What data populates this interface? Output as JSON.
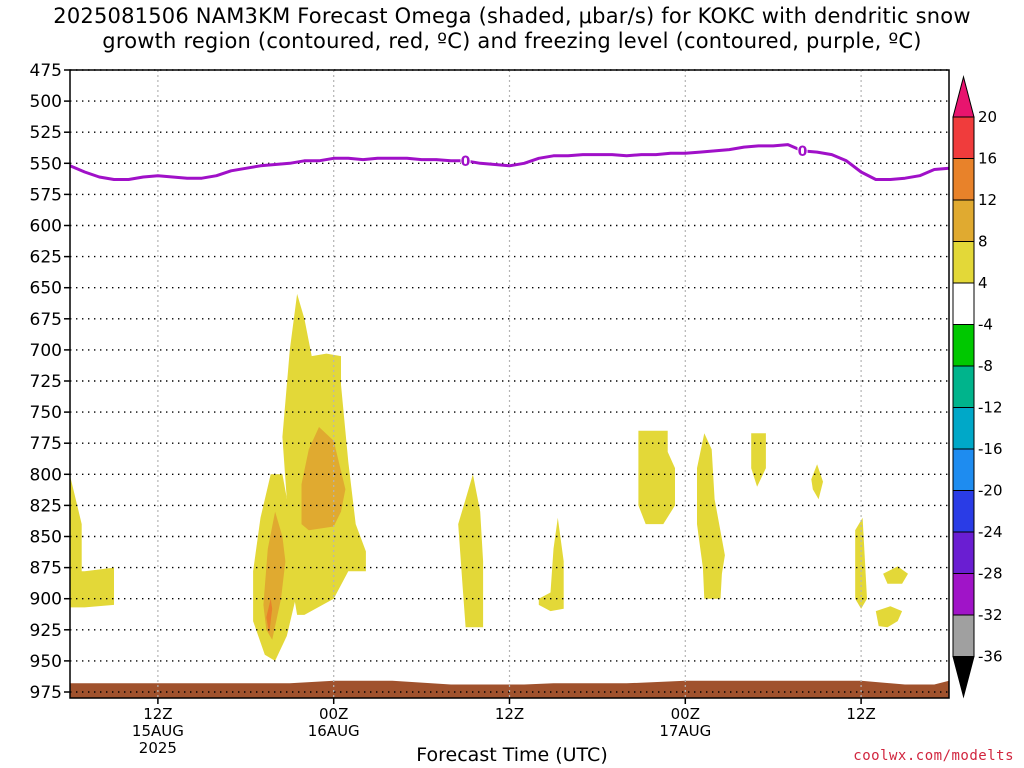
{
  "title": {
    "line1": "2025081506 NAM3KM Forecast Omega (shaded, μbar/s) for KOKC with dendritic snow",
    "line2": "growth region (contoured, red, ºC) and freezing level (contoured, purple, ºC)"
  },
  "xlabel": "Forecast Time (UTC)",
  "credit": "coolwx.com/modelts",
  "chart_data": {
    "type": "heatmap",
    "title": "2025081506 NAM3KM Forecast Omega (shaded, μbar/s) for KOKC with dendritic snow growth region (contoured, red, ºC) and freezing level (contoured, purple, ºC)",
    "xlabel": "Forecast Time (UTC)",
    "ylabel": "",
    "x_unit": "hours from 2025-08-15 06Z",
    "xlim": [
      0,
      60
    ],
    "ylim": [
      975,
      475
    ],
    "y_scale": "pressure (hPa), inverted",
    "grid": true,
    "y_ticks": [
      475,
      500,
      525,
      550,
      575,
      600,
      625,
      650,
      675,
      700,
      725,
      750,
      775,
      800,
      825,
      850,
      875,
      900,
      925,
      950,
      975
    ],
    "x_ticks": [
      {
        "x": 6,
        "lines": [
          "12Z",
          "15AUG",
          "2025"
        ]
      },
      {
        "x": 18,
        "lines": [
          "00Z",
          "16AUG"
        ]
      },
      {
        "x": 30,
        "lines": [
          "12Z"
        ]
      },
      {
        "x": 42,
        "lines": [
          "00Z",
          "17AUG"
        ]
      },
      {
        "x": 54,
        "lines": [
          "12Z"
        ]
      }
    ],
    "colorbar": {
      "labels": [
        "20",
        "16",
        "12",
        "8",
        "4",
        "-4",
        "-8",
        "-12",
        "-16",
        "-20",
        "-24",
        "-28",
        "-32",
        "-36"
      ],
      "colors": [
        "#e8146e",
        "#f03c3c",
        "#e8822a",
        "#e0aa30",
        "#e3d838",
        "#ffffff",
        "#00c800",
        "#00b48c",
        "#00a8c8",
        "#1e8cf0",
        "#2a3ce6",
        "#6a1ed2",
        "#a014c8",
        "#a0a0a0",
        "#000000"
      ]
    },
    "freezing_level": {
      "label": "0",
      "color": "#a010c8",
      "x": [
        0,
        1,
        2,
        3,
        4,
        5,
        6,
        7,
        8,
        9,
        10,
        11,
        12,
        13,
        14,
        15,
        16,
        17,
        18,
        19,
        20,
        21,
        22,
        23,
        24,
        25,
        26,
        27,
        28,
        29,
        30,
        31,
        32,
        33,
        34,
        35,
        36,
        37,
        38,
        39,
        40,
        41,
        42,
        43,
        44,
        45,
        46,
        47,
        48,
        49,
        50,
        51,
        52,
        53,
        54,
        55,
        56,
        57,
        58,
        59,
        60
      ],
      "y": [
        552,
        557,
        561,
        563,
        563,
        561,
        560,
        561,
        562,
        562,
        560,
        556,
        554,
        552,
        551,
        550,
        548,
        548,
        546,
        546,
        547,
        546,
        546,
        546,
        547,
        547,
        548,
        548,
        550,
        551,
        552,
        550,
        546,
        544,
        544,
        543,
        543,
        543,
        544,
        543,
        543,
        542,
        542,
        541,
        540,
        539,
        537,
        536,
        536,
        535,
        540,
        541,
        543,
        548,
        557,
        563,
        563,
        562,
        560,
        555,
        554
      ]
    },
    "omega_regions": [
      {
        "level": "4-8",
        "color": "#e3d838",
        "points": [
          [
            0,
            801
          ],
          [
            0.8,
            840
          ],
          [
            0.8,
            878
          ],
          [
            1,
            878
          ],
          [
            3,
            875
          ],
          [
            3,
            905
          ],
          [
            1,
            907
          ],
          [
            0,
            907
          ]
        ]
      },
      {
        "level": "4-8",
        "color": "#e3d838",
        "points": [
          [
            12.5,
            878
          ],
          [
            13,
            835
          ],
          [
            13.7,
            800
          ],
          [
            14.5,
            800
          ],
          [
            15.2,
            845
          ],
          [
            15.5,
            895
          ],
          [
            14.8,
            930
          ],
          [
            14,
            950
          ],
          [
            13.3,
            945
          ],
          [
            12.5,
            918
          ]
        ]
      },
      {
        "level": "4-8",
        "color": "#e3d838",
        "points": [
          [
            14.5,
            770
          ],
          [
            15,
            700
          ],
          [
            15.5,
            655
          ],
          [
            16,
            675
          ],
          [
            16.5,
            705
          ],
          [
            17.5,
            703
          ],
          [
            18.5,
            705
          ],
          [
            18.5,
            728
          ],
          [
            19,
            790
          ],
          [
            19.5,
            840
          ],
          [
            20.2,
            862
          ],
          [
            20.2,
            878
          ],
          [
            19,
            878
          ],
          [
            18,
            900
          ],
          [
            16,
            913
          ],
          [
            15.5,
            913
          ],
          [
            15,
            878
          ],
          [
            14.8,
            820
          ]
        ]
      },
      {
        "level": "4-8",
        "color": "#e3d838",
        "points": [
          [
            26.5,
            840
          ],
          [
            27,
            820
          ],
          [
            27.5,
            800
          ],
          [
            28,
            830
          ],
          [
            28.2,
            870
          ],
          [
            28.2,
            923
          ],
          [
            27,
            923
          ],
          [
            26.8,
            890
          ]
        ]
      },
      {
        "level": "4-8",
        "color": "#e3d838",
        "points": [
          [
            32,
            900
          ],
          [
            32.8,
            895
          ],
          [
            33,
            860
          ],
          [
            33.3,
            835
          ],
          [
            33.7,
            870
          ],
          [
            33.7,
            908
          ],
          [
            32.8,
            910
          ],
          [
            32,
            905
          ]
        ]
      },
      {
        "level": "4-8",
        "color": "#e3d838",
        "points": [
          [
            38.8,
            765
          ],
          [
            40.8,
            765
          ],
          [
            40.8,
            782
          ],
          [
            41.3,
            795
          ],
          [
            41.3,
            825
          ],
          [
            40.5,
            840
          ],
          [
            39.3,
            840
          ],
          [
            38.8,
            825
          ]
        ]
      },
      {
        "level": "4-8",
        "color": "#e3d838",
        "points": [
          [
            42.8,
            795
          ],
          [
            43.3,
            767
          ],
          [
            43.8,
            780
          ],
          [
            44,
            820
          ],
          [
            44.7,
            865
          ],
          [
            44.5,
            880
          ],
          [
            44.4,
            900
          ],
          [
            43.3,
            900
          ],
          [
            43.2,
            875
          ],
          [
            43,
            858
          ],
          [
            42.8,
            840
          ]
        ]
      },
      {
        "level": "4-8",
        "color": "#e3d838",
        "points": [
          [
            46.5,
            767
          ],
          [
            47.5,
            767
          ],
          [
            47.5,
            795
          ],
          [
            46.9,
            810
          ],
          [
            46.5,
            795
          ]
        ]
      },
      {
        "level": "4-8",
        "color": "#e3d838",
        "points": [
          [
            50.6,
            804
          ],
          [
            51,
            792
          ],
          [
            51.4,
            806
          ],
          [
            51.1,
            820
          ],
          [
            50.7,
            812
          ]
        ]
      },
      {
        "level": "4-8",
        "color": "#e3d838",
        "points": [
          [
            53.6,
            845
          ],
          [
            54.1,
            835
          ],
          [
            54.4,
            900
          ],
          [
            54,
            908
          ],
          [
            53.6,
            900
          ]
        ]
      },
      {
        "level": "4-8",
        "color": "#e3d838",
        "points": [
          [
            55.5,
            880
          ],
          [
            56.5,
            874
          ],
          [
            57.2,
            880
          ],
          [
            56.8,
            888
          ],
          [
            55.8,
            888
          ]
        ]
      },
      {
        "level": "4-8",
        "color": "#e3d838",
        "points": [
          [
            55,
            910
          ],
          [
            56,
            906
          ],
          [
            56.8,
            910
          ],
          [
            56.5,
            918
          ],
          [
            55.8,
            923
          ],
          [
            55.2,
            922
          ]
        ]
      },
      {
        "level": "8-12",
        "color": "#e0aa30",
        "points": [
          [
            15.8,
            840
          ],
          [
            15.8,
            808
          ],
          [
            16.3,
            780
          ],
          [
            17,
            762
          ],
          [
            18,
            773
          ],
          [
            18.8,
            812
          ],
          [
            18.5,
            830
          ],
          [
            18,
            842
          ],
          [
            16.3,
            845
          ]
        ]
      },
      {
        "level": "8-12",
        "color": "#e0aa30",
        "points": [
          [
            13.2,
            905
          ],
          [
            13.5,
            860
          ],
          [
            14,
            830
          ],
          [
            14.5,
            850
          ],
          [
            14.7,
            870
          ],
          [
            14.4,
            900
          ],
          [
            13.8,
            933
          ],
          [
            13.4,
            925
          ]
        ]
      },
      {
        "level": "12-16",
        "color": "#e8822a",
        "points": [
          [
            13.7,
            900
          ],
          [
            13.8,
            908
          ],
          [
            13.6,
            928
          ],
          [
            13.4,
            915
          ]
        ]
      }
    ],
    "ground": {
      "color": "#a0522d",
      "x": [
        0,
        6,
        15,
        18,
        20,
        22,
        26,
        29,
        31,
        33,
        38,
        42,
        46,
        54,
        57,
        59,
        60
      ],
      "y": [
        968,
        968,
        968,
        966,
        966,
        966,
        969,
        969,
        969,
        968,
        968,
        966,
        966,
        966,
        969,
        969,
        966
      ]
    }
  }
}
